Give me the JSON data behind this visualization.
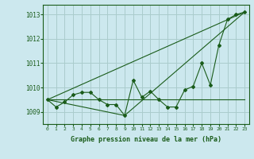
{
  "background_color": "#cce8ee",
  "grid_color": "#aacccc",
  "line_color": "#1a5c1a",
  "xlabel": "Graphe pression niveau de la mer (hPa)",
  "ylim": [
    1008.5,
    1013.4
  ],
  "xlim": [
    -0.5,
    23.5
  ],
  "yticks": [
    1009,
    1010,
    1011,
    1012,
    1013
  ],
  "xticks": [
    0,
    1,
    2,
    3,
    4,
    5,
    6,
    7,
    8,
    9,
    10,
    11,
    12,
    13,
    14,
    15,
    16,
    17,
    18,
    19,
    20,
    21,
    22,
    23
  ],
  "series1_x": [
    0,
    1,
    2,
    3,
    4,
    5,
    6,
    7,
    8,
    9,
    10,
    11,
    12,
    13,
    14,
    15,
    16,
    17,
    18,
    19,
    20,
    21,
    22,
    23
  ],
  "series1_y": [
    1009.5,
    1009.2,
    1009.4,
    1009.7,
    1009.8,
    1009.8,
    1009.5,
    1009.3,
    1009.3,
    1008.85,
    1010.3,
    1009.6,
    1009.85,
    1009.5,
    1009.2,
    1009.2,
    1009.9,
    1010.05,
    1011.0,
    1010.1,
    1011.75,
    1012.8,
    1013.0,
    1013.1
  ],
  "series2_x": [
    0,
    23
  ],
  "series2_y": [
    1009.5,
    1013.1
  ],
  "series3_x": [
    0,
    9,
    23
  ],
  "series3_y": [
    1009.5,
    1008.85,
    1013.1
  ],
  "series4_x": [
    0,
    23
  ],
  "series4_y": [
    1009.5,
    1009.5
  ]
}
